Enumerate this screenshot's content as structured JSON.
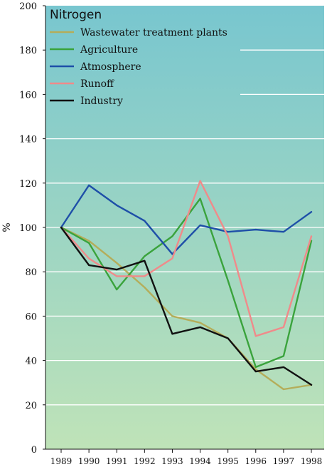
{
  "chart_data": {
    "type": "line",
    "title": "",
    "xlabel": "",
    "ylabel": "%",
    "legend_title": "Nitrogen",
    "legend_position": "top-left",
    "grid": true,
    "ylim": [
      0,
      200
    ],
    "yticks": [
      0,
      20,
      40,
      60,
      80,
      100,
      120,
      140,
      160,
      180,
      200
    ],
    "categories": [
      "1989",
      "1990",
      "1991",
      "1992",
      "1993",
      "1994",
      "1995",
      "1996",
      "1997",
      "1998"
    ],
    "series": [
      {
        "name": "Wastewater treatment plants",
        "color": "#b4ad5a",
        "values": [
          100,
          94,
          84,
          73,
          60,
          57,
          50,
          36,
          27,
          29
        ]
      },
      {
        "name": "Agriculture",
        "color": "#3aa33c",
        "values": [
          100,
          93,
          72,
          87,
          96,
          113,
          76,
          37,
          42,
          94
        ]
      },
      {
        "name": "Atmosphere",
        "color": "#1e4fa8",
        "values": [
          100,
          119,
          110,
          103,
          88,
          101,
          98,
          99,
          98,
          107
        ]
      },
      {
        "name": "Runoff",
        "color": "#f08a8a",
        "values": [
          100,
          86,
          78,
          78,
          86,
          121,
          96,
          51,
          55,
          96
        ]
      },
      {
        "name": "Industry",
        "color": "#111111",
        "values": [
          100,
          83,
          81,
          85,
          52,
          55,
          50,
          35,
          37,
          29
        ]
      }
    ],
    "colors": {
      "bg_top": "#78c6cf",
      "bg_bottom": "#bfe3b8",
      "grid": "#ffffff"
    }
  }
}
